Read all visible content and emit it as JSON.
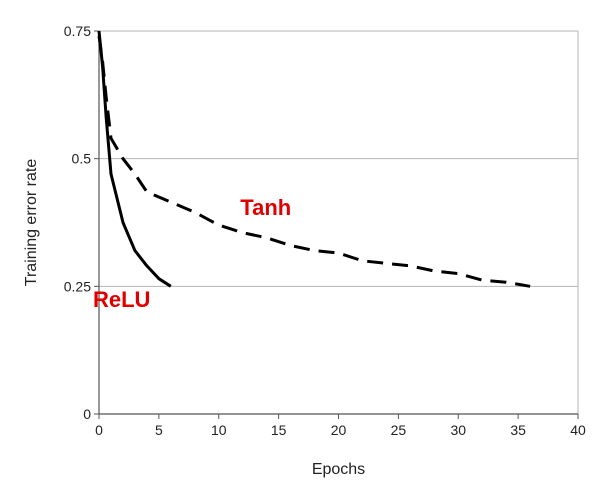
{
  "chart_data": {
    "type": "line",
    "title": "",
    "xlabel": "Epochs",
    "ylabel": "Training error rate",
    "xlim": [
      0,
      40
    ],
    "ylim": [
      0,
      0.75
    ],
    "x_ticks": [
      "0",
      "5",
      "10",
      "15",
      "20",
      "25",
      "30",
      "35",
      "40"
    ],
    "y_ticks": [
      "0",
      "0.25",
      "0.5",
      "0.75"
    ],
    "grid": "horizontal",
    "legend": "none",
    "series": [
      {
        "name": "ReLU",
        "style": "solid",
        "color": "#000000",
        "label_color": "#e00000",
        "label_at": [
          -0.5,
          0.21
        ],
        "x": [
          0,
          0.3,
          0.6,
          1,
          2,
          3,
          4,
          5,
          6
        ],
        "y": [
          0.75,
          0.68,
          0.58,
          0.47,
          0.375,
          0.32,
          0.29,
          0.265,
          0.25
        ]
      },
      {
        "name": "Tanh",
        "style": "dashed",
        "color": "#000000",
        "label_color": "#e00000",
        "label_at": [
          11.8,
          0.39
        ],
        "x": [
          0,
          0.3,
          0.6,
          1,
          2,
          3,
          4,
          6,
          8,
          10,
          12,
          14,
          16,
          18,
          20,
          22,
          24,
          26,
          28,
          30,
          32,
          34,
          36
        ],
        "y": [
          0.74,
          0.69,
          0.62,
          0.54,
          0.5,
          0.47,
          0.435,
          0.415,
          0.395,
          0.37,
          0.355,
          0.345,
          0.33,
          0.32,
          0.315,
          0.3,
          0.295,
          0.29,
          0.28,
          0.275,
          0.262,
          0.258,
          0.25
        ]
      }
    ]
  }
}
